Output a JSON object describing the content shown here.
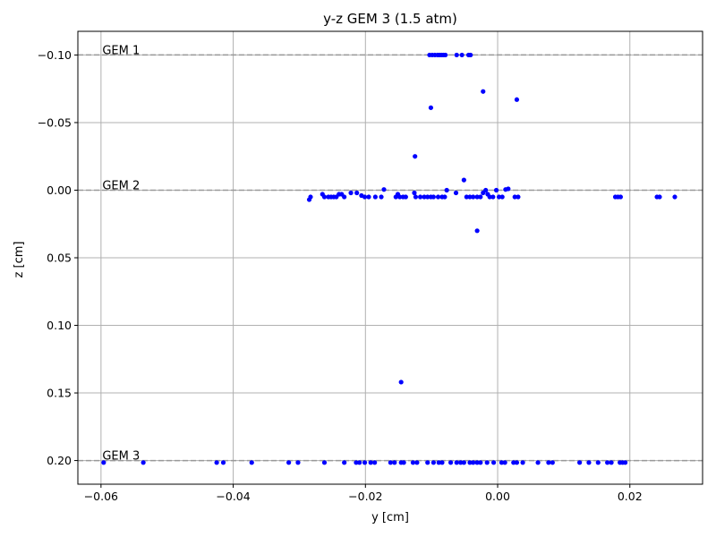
{
  "chart_data": {
    "type": "scatter",
    "title": "y-z GEM 3 (1.5 atm)",
    "xlabel": "y [cm]",
    "ylabel": "z [cm]",
    "xlim": [
      -0.0635,
      0.031
    ],
    "ylim": [
      0.2175,
      -0.1175
    ],
    "y_inverted": true,
    "grid": true,
    "xticks": [
      {
        "value": -0.06,
        "label": "−0.06"
      },
      {
        "value": -0.04,
        "label": "−0.04"
      },
      {
        "value": -0.02,
        "label": "−0.02"
      },
      {
        "value": 0.0,
        "label": "0.00"
      },
      {
        "value": 0.02,
        "label": "0.02"
      }
    ],
    "yticks": [
      {
        "value": -0.1,
        "label": "−0.10"
      },
      {
        "value": -0.05,
        "label": "−0.05"
      },
      {
        "value": 0.0,
        "label": "0.00"
      },
      {
        "value": 0.05,
        "label": "0.05"
      },
      {
        "value": 0.1,
        "label": "0.10"
      },
      {
        "value": 0.15,
        "label": "0.15"
      },
      {
        "value": 0.2,
        "label": "0.20"
      }
    ],
    "reference_lines": [
      {
        "z": -0.1,
        "label": "GEM 1"
      },
      {
        "z": 0.0,
        "label": "GEM 2"
      },
      {
        "z": 0.2,
        "label": "GEM 3"
      }
    ],
    "colors": {
      "points": "#0000ff",
      "reference": "#999999",
      "grid": "#b0b0b0"
    },
    "points": [
      {
        "x": -0.0103,
        "z": -0.1
      },
      {
        "x": -0.0099,
        "z": -0.1
      },
      {
        "x": -0.0095,
        "z": -0.1
      },
      {
        "x": -0.0091,
        "z": -0.1
      },
      {
        "x": -0.0088,
        "z": -0.1
      },
      {
        "x": -0.0085,
        "z": -0.1
      },
      {
        "x": -0.0082,
        "z": -0.1
      },
      {
        "x": -0.0079,
        "z": -0.1
      },
      {
        "x": -0.0062,
        "z": -0.1
      },
      {
        "x": -0.0054,
        "z": -0.1
      },
      {
        "x": -0.0044,
        "z": -0.1
      },
      {
        "x": -0.0041,
        "z": -0.1
      },
      {
        "x": -0.0022,
        "z": -0.073
      },
      {
        "x": 0.0029,
        "z": -0.067
      },
      {
        "x": -0.0101,
        "z": -0.061
      },
      {
        "x": -0.0125,
        "z": -0.025
      },
      {
        "x": -0.0051,
        "z": -0.0075
      },
      {
        "x": -0.0031,
        "z": 0.03
      },
      {
        "x": -0.0146,
        "z": 0.142
      },
      {
        "x": -0.0283,
        "z": 0.005
      },
      {
        "x": -0.0285,
        "z": 0.007
      },
      {
        "x": -0.0265,
        "z": 0.003
      },
      {
        "x": -0.0262,
        "z": 0.005
      },
      {
        "x": -0.0256,
        "z": 0.005
      },
      {
        "x": -0.0252,
        "z": 0.005
      },
      {
        "x": -0.0248,
        "z": 0.005
      },
      {
        "x": -0.0244,
        "z": 0.005
      },
      {
        "x": -0.024,
        "z": 0.003
      },
      {
        "x": -0.0236,
        "z": 0.003
      },
      {
        "x": -0.0232,
        "z": 0.005
      },
      {
        "x": -0.0222,
        "z": 0.002
      },
      {
        "x": -0.0213,
        "z": 0.002
      },
      {
        "x": -0.0206,
        "z": 0.004
      },
      {
        "x": -0.0201,
        "z": 0.005
      },
      {
        "x": -0.0195,
        "z": 0.005
      },
      {
        "x": -0.0185,
        "z": 0.005
      },
      {
        "x": -0.0176,
        "z": 0.005
      },
      {
        "x": -0.0172,
        "z": -0.0005
      },
      {
        "x": -0.0154,
        "z": 0.005
      },
      {
        "x": -0.0151,
        "z": 0.003
      },
      {
        "x": -0.0148,
        "z": 0.005
      },
      {
        "x": -0.0143,
        "z": 0.005
      },
      {
        "x": -0.0139,
        "z": 0.005
      },
      {
        "x": -0.0126,
        "z": 0.002
      },
      {
        "x": -0.0124,
        "z": 0.005
      },
      {
        "x": -0.0117,
        "z": 0.005
      },
      {
        "x": -0.0111,
        "z": 0.005
      },
      {
        "x": -0.0106,
        "z": 0.005
      },
      {
        "x": -0.0101,
        "z": 0.005
      },
      {
        "x": -0.0097,
        "z": 0.005
      },
      {
        "x": -0.009,
        "z": 0.005
      },
      {
        "x": -0.0084,
        "z": 0.005
      },
      {
        "x": -0.008,
        "z": 0.005
      },
      {
        "x": -0.0077,
        "z": 0.0
      },
      {
        "x": -0.0063,
        "z": 0.002
      },
      {
        "x": -0.0047,
        "z": 0.005
      },
      {
        "x": -0.0042,
        "z": 0.005
      },
      {
        "x": -0.0037,
        "z": 0.005
      },
      {
        "x": -0.0031,
        "z": 0.005
      },
      {
        "x": -0.0026,
        "z": 0.005
      },
      {
        "x": -0.0022,
        "z": 0.002
      },
      {
        "x": -0.0018,
        "z": 0.0
      },
      {
        "x": -0.0015,
        "z": 0.003
      },
      {
        "x": -0.0012,
        "z": 0.005
      },
      {
        "x": -0.0007,
        "z": 0.005
      },
      {
        "x": -0.0002,
        "z": 0.0
      },
      {
        "x": 0.0002,
        "z": 0.005
      },
      {
        "x": 0.0007,
        "z": 0.005
      },
      {
        "x": 0.0012,
        "z": -0.0005
      },
      {
        "x": 0.0016,
        "z": -0.001
      },
      {
        "x": 0.0026,
        "z": 0.005
      },
      {
        "x": 0.0031,
        "z": 0.005
      },
      {
        "x": 0.0178,
        "z": 0.005
      },
      {
        "x": 0.0182,
        "z": 0.005
      },
      {
        "x": 0.0186,
        "z": 0.005
      },
      {
        "x": 0.0241,
        "z": 0.005
      },
      {
        "x": 0.0245,
        "z": 0.005
      },
      {
        "x": 0.0268,
        "z": 0.005
      },
      {
        "x": -0.0596,
        "z": 0.2015
      },
      {
        "x": -0.0536,
        "z": 0.2015
      },
      {
        "x": -0.0425,
        "z": 0.2015
      },
      {
        "x": -0.0415,
        "z": 0.2015
      },
      {
        "x": -0.0372,
        "z": 0.2015
      },
      {
        "x": -0.0316,
        "z": 0.2015
      },
      {
        "x": -0.0302,
        "z": 0.2015
      },
      {
        "x": -0.0262,
        "z": 0.2015
      },
      {
        "x": -0.0232,
        "z": 0.2015
      },
      {
        "x": -0.0214,
        "z": 0.2015
      },
      {
        "x": -0.0209,
        "z": 0.2015
      },
      {
        "x": -0.0201,
        "z": 0.2015
      },
      {
        "x": -0.0192,
        "z": 0.2015
      },
      {
        "x": -0.0186,
        "z": 0.2015
      },
      {
        "x": -0.0162,
        "z": 0.2015
      },
      {
        "x": -0.0156,
        "z": 0.2015
      },
      {
        "x": -0.0146,
        "z": 0.2015
      },
      {
        "x": -0.0142,
        "z": 0.2015
      },
      {
        "x": -0.0128,
        "z": 0.2015
      },
      {
        "x": -0.0122,
        "z": 0.2015
      },
      {
        "x": -0.0106,
        "z": 0.2015
      },
      {
        "x": -0.0097,
        "z": 0.2015
      },
      {
        "x": -0.0089,
        "z": 0.2015
      },
      {
        "x": -0.0084,
        "z": 0.2015
      },
      {
        "x": -0.0071,
        "z": 0.2015
      },
      {
        "x": -0.0062,
        "z": 0.2015
      },
      {
        "x": -0.0056,
        "z": 0.2015
      },
      {
        "x": -0.0051,
        "z": 0.2015
      },
      {
        "x": -0.0042,
        "z": 0.2015
      },
      {
        "x": -0.0037,
        "z": 0.2015
      },
      {
        "x": -0.0031,
        "z": 0.2015
      },
      {
        "x": -0.0026,
        "z": 0.2015
      },
      {
        "x": -0.0016,
        "z": 0.2015
      },
      {
        "x": -0.0006,
        "z": 0.2015
      },
      {
        "x": 0.0006,
        "z": 0.2015
      },
      {
        "x": 0.0011,
        "z": 0.2015
      },
      {
        "x": 0.0024,
        "z": 0.2015
      },
      {
        "x": 0.0029,
        "z": 0.2015
      },
      {
        "x": 0.0038,
        "z": 0.2015
      },
      {
        "x": 0.0061,
        "z": 0.2015
      },
      {
        "x": 0.0077,
        "z": 0.2015
      },
      {
        "x": 0.0083,
        "z": 0.2015
      },
      {
        "x": 0.0124,
        "z": 0.2015
      },
      {
        "x": 0.0138,
        "z": 0.2015
      },
      {
        "x": 0.0152,
        "z": 0.2015
      },
      {
        "x": 0.0166,
        "z": 0.2015
      },
      {
        "x": 0.0172,
        "z": 0.2015
      },
      {
        "x": 0.0185,
        "z": 0.2015
      },
      {
        "x": 0.0189,
        "z": 0.2015
      },
      {
        "x": 0.0193,
        "z": 0.2015
      }
    ]
  }
}
